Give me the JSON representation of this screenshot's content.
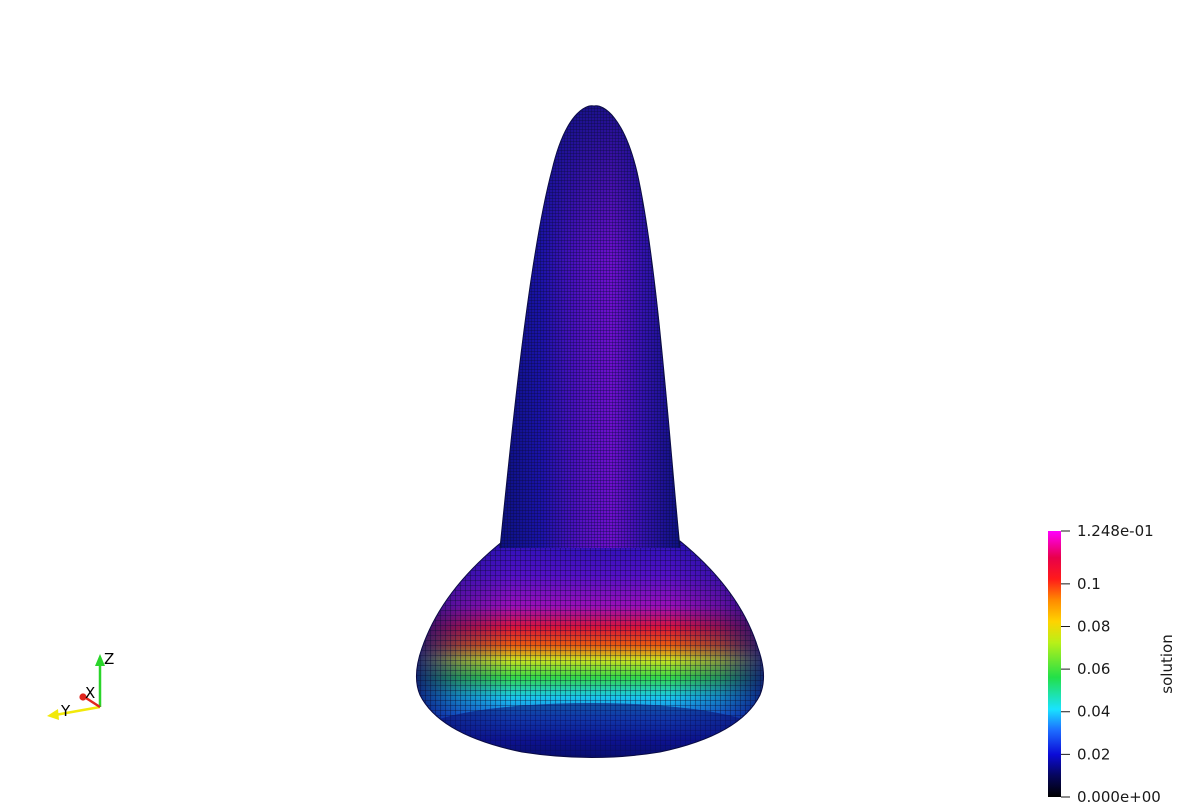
{
  "scene": {
    "colors": {
      "background": "#ffffff",
      "mesh_dark": "#10148a",
      "mesh_purple": "#7a10c8",
      "mesh_edge": "#0b0c45"
    },
    "surface_icon": "mesh-surface-icon"
  },
  "orientation_axes": {
    "icon": "orientation-axes-icon",
    "x_label": "X",
    "y_label": "Y",
    "z_label": "Z",
    "x_color": "#e0261f",
    "y_color": "#f2e90a",
    "z_color": "#2ad52a"
  },
  "color_bar": {
    "title": "solution",
    "max_label": "1.248e-01",
    "min_label": "0.000e+00",
    "range": [
      0,
      0.1248
    ],
    "ticks": [
      {
        "value": 0.1,
        "label": "0.1"
      },
      {
        "value": 0.08,
        "label": "0.08"
      },
      {
        "value": 0.06,
        "label": "0.06"
      },
      {
        "value": 0.04,
        "label": "0.04"
      },
      {
        "value": 0.02,
        "label": "0.02"
      }
    ],
    "colormap": [
      "#000000",
      "#0b0bd8",
      "#1d6cff",
      "#19e3ff",
      "#22e048",
      "#b8f018",
      "#ffd300",
      "#ff8a00",
      "#ff1a1a",
      "#e8004a",
      "#ff00ff"
    ]
  }
}
